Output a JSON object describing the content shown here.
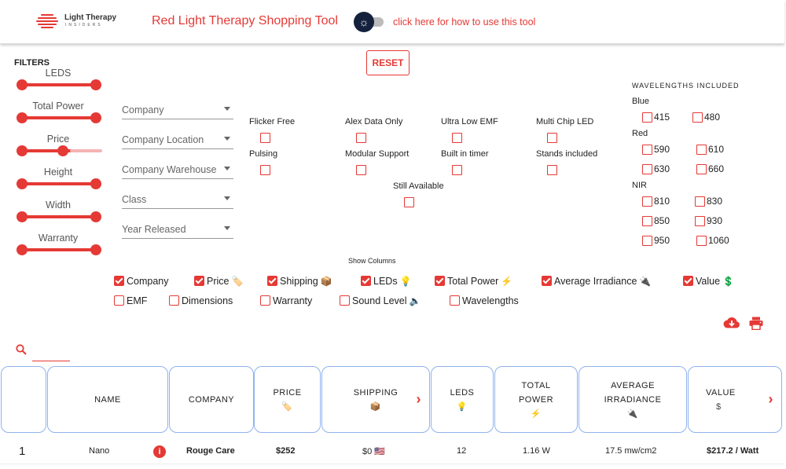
{
  "header": {
    "logo": {
      "title": "Light Therapy",
      "subtitle": "INSIDERS"
    },
    "app_title": "Red Light Therapy Shopping Tool",
    "theme_toggle_icon": "sun-icon",
    "help_link": "click here for how to use this tool"
  },
  "filters": {
    "label": "FILTERS",
    "reset_label": "RESET",
    "sliders": [
      {
        "label": "LEDS",
        "range": [
          0,
          1
        ]
      },
      {
        "label": "Total Power",
        "range": [
          0,
          1
        ]
      },
      {
        "label": "Price",
        "range": [
          0,
          0.6
        ]
      },
      {
        "label": "Height",
        "range": [
          0,
          1
        ]
      },
      {
        "label": "Width",
        "range": [
          0,
          1
        ]
      },
      {
        "label": "Warranty",
        "range": [
          0,
          1
        ]
      }
    ],
    "selects": [
      "Company",
      "Company Location",
      "Company Warehouse",
      "Class",
      "Year Released"
    ],
    "checkboxes": [
      {
        "label": "Flicker Free",
        "checked": false
      },
      {
        "label": "Alex Data Only",
        "checked": false
      },
      {
        "label": "Ultra Low EMF",
        "checked": false
      },
      {
        "label": "Multi Chip LED",
        "checked": false
      },
      {
        "label": "Pulsing",
        "checked": false
      },
      {
        "label": "Modular Support",
        "checked": false
      },
      {
        "label": "Built in timer",
        "checked": false
      },
      {
        "label": "Stands included",
        "checked": false
      },
      {
        "label": "Still Available",
        "checked": false
      }
    ]
  },
  "wavelengths": {
    "heading": "WAVELENGTHS INCLUDED",
    "groups": [
      {
        "name": "Blue",
        "items": [
          "415",
          "480"
        ]
      },
      {
        "name": "Red",
        "items": [
          "590",
          "610",
          "630",
          "660"
        ]
      },
      {
        "name": "NIR",
        "items": [
          "810",
          "830",
          "850",
          "930",
          "950",
          "1060"
        ]
      }
    ]
  },
  "columns": {
    "label": "Show Columns",
    "items": [
      {
        "label": "Company",
        "checked": true,
        "emoji": ""
      },
      {
        "label": "Price",
        "checked": true,
        "emoji": "🏷️"
      },
      {
        "label": "Shipping",
        "checked": true,
        "emoji": "📦"
      },
      {
        "label": "LEDs",
        "checked": true,
        "emoji": "💡"
      },
      {
        "label": "Total Power",
        "checked": true,
        "emoji": "⚡"
      },
      {
        "label": "Average Irradiance",
        "checked": true,
        "emoji": "🔌"
      },
      {
        "label": "Value",
        "checked": true,
        "emoji": "💲"
      },
      {
        "label": "EMF",
        "checked": false,
        "emoji": ""
      },
      {
        "label": "Dimensions",
        "checked": false,
        "emoji": ""
      },
      {
        "label": "Warranty",
        "checked": false,
        "emoji": ""
      },
      {
        "label": "Sound Level",
        "checked": false,
        "emoji": "🔈"
      },
      {
        "label": "Wavelengths",
        "checked": false,
        "emoji": ""
      }
    ]
  },
  "toolbar": {
    "download_icon": "cloud-download-icon",
    "print_icon": "print-icon"
  },
  "search": {
    "value": "",
    "icon": "search-icon"
  },
  "table": {
    "headers": [
      {
        "label": "",
        "sub": ""
      },
      {
        "label": "NAME",
        "sub": ""
      },
      {
        "label": "COMPANY",
        "sub": ""
      },
      {
        "label": "PRICE",
        "sub": "🏷️"
      },
      {
        "label": "SHIPPING",
        "sub": "📦"
      },
      {
        "label": "LEDS",
        "sub": "💡"
      },
      {
        "label": "TOTAL POWER",
        "sub": "⚡"
      },
      {
        "label": "AVERAGE IRRADIANCE",
        "sub": "🔌"
      },
      {
        "label": "VALUE",
        "sub": "$"
      }
    ],
    "rows": [
      {
        "index": "1",
        "name": "Nano",
        "company": "Rouge Care",
        "price": "$252",
        "shipping": "$0 🇺🇸",
        "leds": "12",
        "total_power": "1.16 W",
        "irradiance": "17.5 mw/cm2",
        "value": "$217.2 / Watt"
      }
    ]
  },
  "colors": {
    "accent": "#e53935",
    "header_border": "#8fb3ee",
    "toggle_dark": "#14213d"
  }
}
